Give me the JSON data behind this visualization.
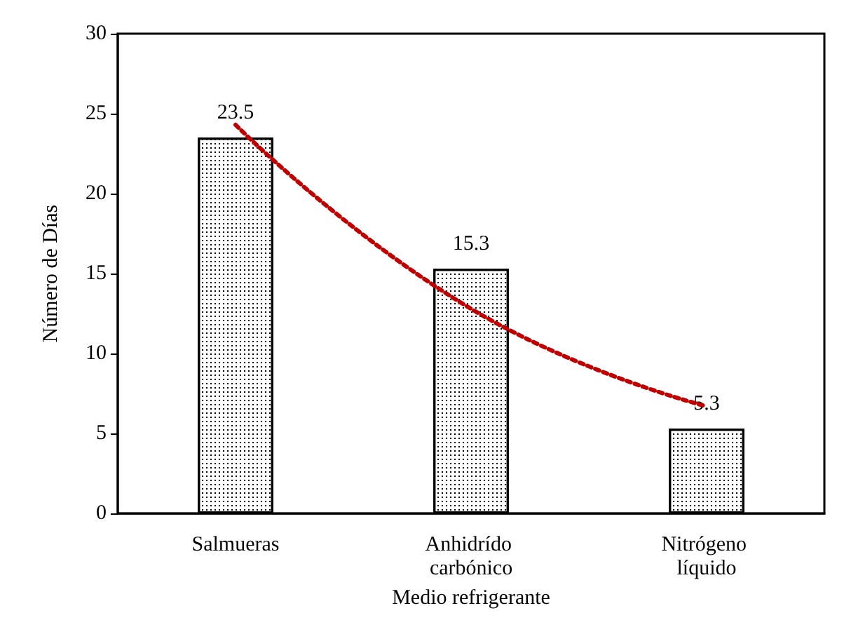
{
  "chart_data": {
    "type": "bar",
    "xlabel": "Medio refrigerante",
    "ylabel": "Número de Días",
    "categories": [
      "Salmueras",
      "Anhidrído carbónico",
      "Nitrógeno líquido"
    ],
    "series": [
      {
        "color": "#ffffff",
        "values": [
          23.5,
          15.3,
          5.3
        ],
        "value_labels": [
          "23.5",
          "15.3",
          "5.3"
        ]
      },
      {
        "type": "line",
        "color": "#c00000",
        "x": [
          "Salmueras",
          "Anhidrído carbónico",
          "Nitrógeno líquido"
        ],
        "values": [
          24.3,
          12.8,
          6.7
        ],
        "line_style": "dotted",
        "marker": "none"
      }
    ],
    "ylim": [
      0,
      30
    ],
    "yticks": [
      0,
      5,
      10,
      15,
      20,
      25,
      30
    ],
    "grid": false
  }
}
